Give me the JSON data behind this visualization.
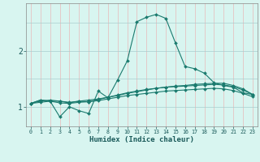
{
  "title": "",
  "xlabel": "Humidex (Indice chaleur)",
  "bg_color": "#d8f5f0",
  "line_color": "#1a7a6e",
  "grid_color_v": "#e8b8b8",
  "grid_color_h": "#a8cece",
  "xlim": [
    -0.5,
    23.5
  ],
  "ylim": [
    0.65,
    2.85
  ],
  "yticks": [
    1,
    2
  ],
  "series": [
    {
      "x": [
        0,
        1,
        2,
        3,
        4,
        5,
        6,
        7,
        8,
        9,
        10,
        11,
        12,
        13,
        14,
        15,
        16,
        17,
        18,
        19,
        20,
        21,
        22,
        23
      ],
      "y": [
        1.06,
        1.12,
        1.1,
        0.82,
        1.0,
        0.93,
        0.88,
        1.28,
        1.16,
        1.48,
        1.82,
        2.52,
        2.6,
        2.65,
        2.58,
        2.14,
        1.72,
        1.68,
        1.6,
        1.43,
        1.38,
        1.35,
        1.25,
        1.22
      ]
    },
    {
      "x": [
        0,
        1,
        2,
        3,
        4,
        5,
        6,
        7,
        8,
        9,
        10,
        11,
        12,
        13,
        14,
        15,
        16,
        17,
        18,
        19,
        20,
        21,
        22,
        23
      ],
      "y": [
        1.06,
        1.12,
        1.1,
        1.1,
        1.07,
        1.1,
        1.09,
        1.13,
        1.17,
        1.2,
        1.24,
        1.27,
        1.3,
        1.33,
        1.35,
        1.37,
        1.38,
        1.4,
        1.41,
        1.42,
        1.42,
        1.38,
        1.32,
        1.22
      ]
    },
    {
      "x": [
        0,
        1,
        2,
        3,
        4,
        5,
        6,
        7,
        8,
        9,
        10,
        11,
        12,
        13,
        14,
        15,
        16,
        17,
        18,
        19,
        20,
        21,
        22,
        23
      ],
      "y": [
        1.06,
        1.1,
        1.12,
        1.1,
        1.08,
        1.1,
        1.12,
        1.14,
        1.17,
        1.21,
        1.25,
        1.28,
        1.31,
        1.33,
        1.35,
        1.36,
        1.37,
        1.38,
        1.39,
        1.4,
        1.39,
        1.36,
        1.3,
        1.22
      ]
    },
    {
      "x": [
        0,
        1,
        2,
        3,
        4,
        5,
        6,
        7,
        8,
        9,
        10,
        11,
        12,
        13,
        14,
        15,
        16,
        17,
        18,
        19,
        20,
        21,
        22,
        23
      ],
      "y": [
        1.06,
        1.08,
        1.1,
        1.07,
        1.06,
        1.08,
        1.09,
        1.11,
        1.14,
        1.17,
        1.2,
        1.22,
        1.24,
        1.26,
        1.28,
        1.29,
        1.3,
        1.31,
        1.32,
        1.33,
        1.32,
        1.29,
        1.24,
        1.18
      ]
    }
  ]
}
